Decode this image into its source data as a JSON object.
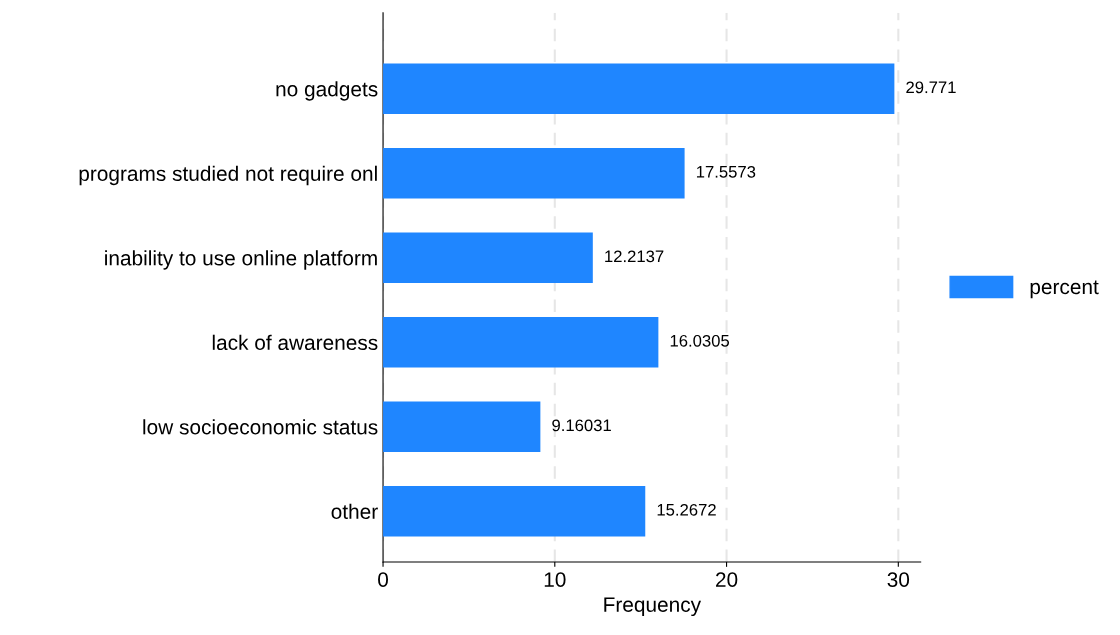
{
  "chart_data": {
    "type": "bar",
    "orientation": "horizontal",
    "xlabel": "Frequency",
    "categories": [
      "no gadgets",
      "programs studied not require onl",
      "inability to use online platform",
      "lack of awareness",
      "low socioeconomic status",
      "other"
    ],
    "series": [
      {
        "name": "percent",
        "color": "#1f86ff",
        "values": [
          29.771,
          17.5573,
          12.2137,
          16.0305,
          9.16031,
          15.2672
        ]
      }
    ],
    "data_labels": true,
    "xlim": [
      0,
      31.3
    ],
    "xticks": [
      0,
      10,
      20,
      30
    ],
    "grid": "x",
    "legend": "right"
  }
}
